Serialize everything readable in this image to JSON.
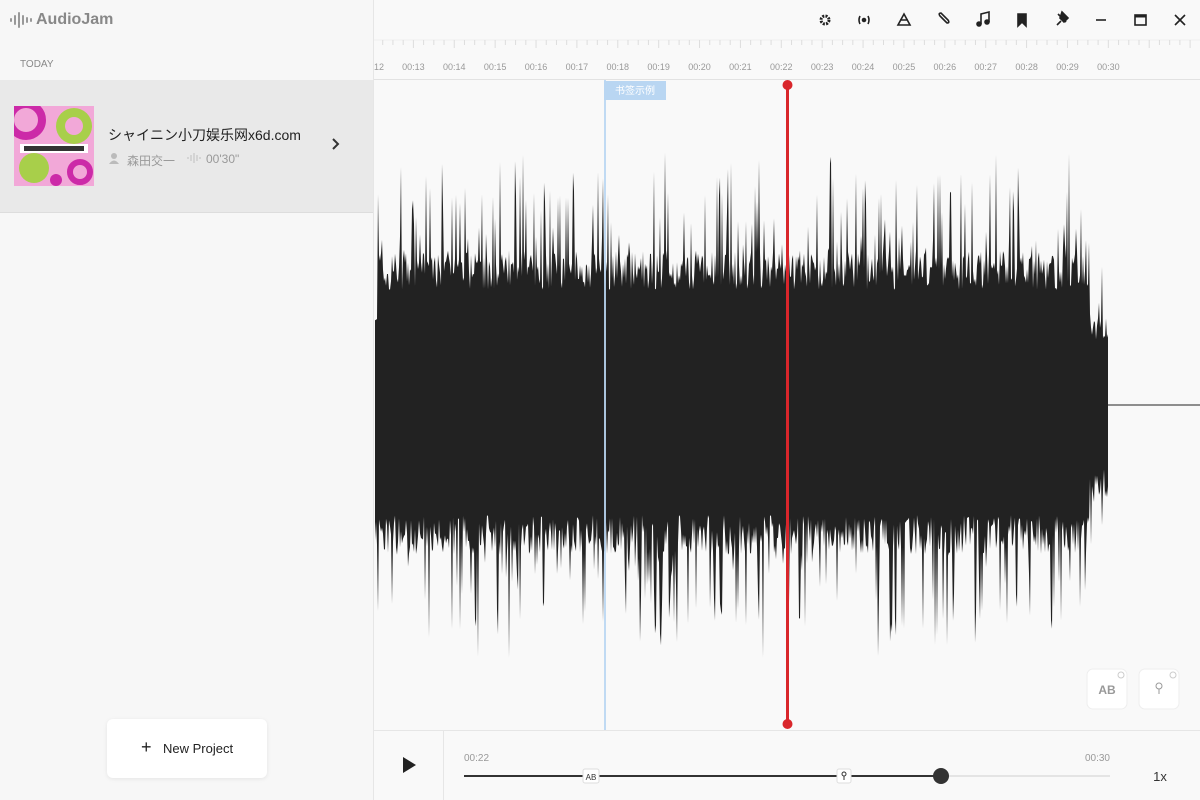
{
  "app": {
    "name": "AudioJam"
  },
  "sidebar": {
    "section": "TODAY",
    "projects": [
      {
        "title": "シャイニン小刀娱乐网x6d.com",
        "artist": "森田交一",
        "duration": "00'30\""
      }
    ],
    "new_project": "New Project"
  },
  "timeline": {
    "ruler": [
      "12",
      "00:13",
      "00:14",
      "00:15",
      "00:16",
      "00:17",
      "00:18",
      "00:19",
      "00:20",
      "00:21",
      "00:22",
      "00:23",
      "00:24",
      "00:25",
      "00:26",
      "00:27",
      "00:28",
      "00:29",
      "00:30"
    ],
    "bookmark": "书签示例"
  },
  "tools": {
    "ab": "AB"
  },
  "player": {
    "start": "00:22",
    "end": "00:30",
    "ab_marker": "AB",
    "speed": "1x"
  }
}
